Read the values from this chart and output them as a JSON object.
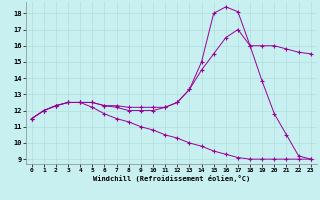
{
  "xlabel": "Windchill (Refroidissement éolien,°C)",
  "bg_color": "#c8f0f0",
  "grid_color": "#b0dede",
  "line_color": "#990099",
  "xlim": [
    -0.5,
    23.5
  ],
  "ylim": [
    8.7,
    18.7
  ],
  "yticks": [
    9,
    10,
    11,
    12,
    13,
    14,
    15,
    16,
    17,
    18
  ],
  "xticks": [
    0,
    1,
    2,
    3,
    4,
    5,
    6,
    7,
    8,
    9,
    10,
    11,
    12,
    13,
    14,
    15,
    16,
    17,
    18,
    19,
    20,
    21,
    22,
    23
  ],
  "line1_x": [
    0,
    1,
    2,
    3,
    4,
    5,
    6,
    7,
    8,
    9,
    10,
    11,
    12,
    13,
    14,
    15,
    16,
    17,
    18,
    19,
    20,
    21,
    22,
    23
  ],
  "line1_y": [
    11.5,
    12.0,
    12.3,
    12.5,
    12.5,
    12.5,
    12.3,
    12.3,
    12.2,
    12.2,
    12.2,
    12.2,
    12.5,
    13.3,
    15.0,
    18.0,
    18.4,
    18.1,
    16.0,
    13.8,
    11.8,
    10.5,
    9.2,
    9.0
  ],
  "line2_x": [
    0,
    1,
    2,
    3,
    4,
    5,
    6,
    7,
    8,
    9,
    10,
    11,
    12,
    13,
    14,
    15,
    16,
    17,
    18,
    19,
    20,
    21,
    22,
    23
  ],
  "line2_y": [
    11.5,
    12.0,
    12.3,
    12.5,
    12.5,
    12.5,
    12.3,
    12.2,
    12.0,
    12.0,
    12.0,
    12.2,
    12.5,
    13.3,
    14.5,
    15.5,
    16.5,
    17.0,
    16.0,
    16.0,
    16.0,
    15.8,
    15.6,
    15.5
  ],
  "line3_x": [
    0,
    1,
    2,
    3,
    4,
    5,
    6,
    7,
    8,
    9,
    10,
    11,
    12,
    13,
    14,
    15,
    16,
    17,
    18,
    19,
    20,
    21,
    22,
    23
  ],
  "line3_y": [
    11.5,
    12.0,
    12.3,
    12.5,
    12.5,
    12.2,
    11.8,
    11.5,
    11.3,
    11.0,
    10.8,
    10.5,
    10.3,
    10.0,
    9.8,
    9.5,
    9.3,
    9.1,
    9.0,
    9.0,
    9.0,
    9.0,
    9.0,
    9.0
  ]
}
